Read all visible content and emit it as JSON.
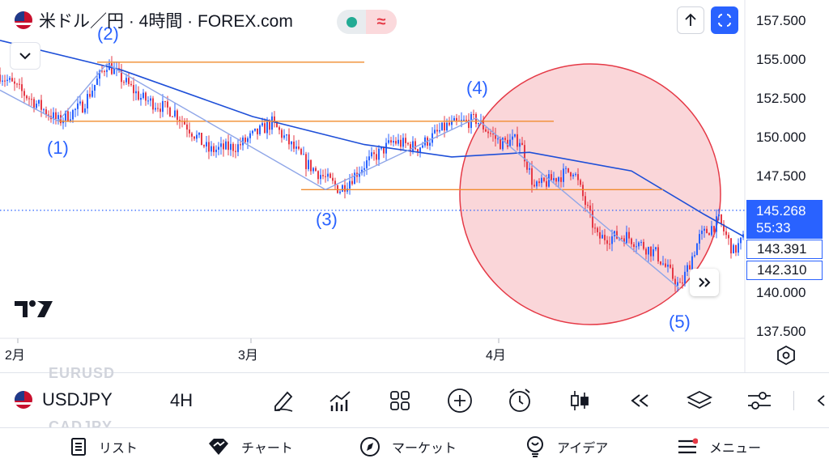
{
  "header": {
    "title": "米ドル／円 · 4時間 · FOREX.com",
    "status_icon": "wave-approx-icon",
    "status_symbol": "≈"
  },
  "price_axis": {
    "ticks": [
      "157.500",
      "155.000",
      "152.500",
      "150.000",
      "147.500",
      "140.000",
      "137.500"
    ],
    "current_price": "145.268",
    "countdown": "55:33",
    "label_2": "143.391",
    "label_3": "142.310"
  },
  "time_axis": {
    "labels": [
      "2月",
      "3月",
      "4月"
    ]
  },
  "annotations": {
    "wave_labels": [
      "(1)",
      "(2)",
      "(3)",
      "(4)",
      "(5)"
    ]
  },
  "colors": {
    "candle_up": "#2962ff",
    "candle_down": "#e53946",
    "moving_average": "#1e4fd8",
    "horizontal_lines": "#f08c2e",
    "wave_lines": "#8fa6e8",
    "circle_fill": "#f5b5b9",
    "circle_stroke": "#e53946",
    "accent_blue": "#2962ff"
  },
  "toolbar": {
    "symbol": "USDJPY",
    "timeframe": "4H",
    "ghost_above": "EURUSD",
    "ghost_below": "CADJPY",
    "tools": [
      "drawing-pen-icon",
      "indicators-icon",
      "layouts-grid-icon",
      "add-icon",
      "alert-clock-icon",
      "candlestick-type-icon",
      "replay-icon",
      "layers-icon",
      "settings-sliders-icon"
    ]
  },
  "nav": {
    "items": [
      {
        "label": "リスト",
        "icon": "list-icon"
      },
      {
        "label": "チャート",
        "icon": "chart-icon"
      },
      {
        "label": "マーケット",
        "icon": "compass-icon"
      },
      {
        "label": "アイデア",
        "icon": "idea-bulb-icon"
      },
      {
        "label": "メニュー",
        "icon": "menu-icon"
      }
    ]
  },
  "chart_data": {
    "type": "candlestick",
    "symbol": "USDJPY",
    "timeframe": "4H",
    "ylim": [
      136.5,
      158.5
    ],
    "x_labels": [
      "2月",
      "3月",
      "4月"
    ],
    "path_points": [
      {
        "t": 0,
        "v": 154.0
      },
      {
        "t": 12,
        "v": 152.5
      },
      {
        "t": 24,
        "v": 151.0
      },
      {
        "t": 34,
        "v": 152.0
      },
      {
        "t": 44,
        "v": 154.7
      },
      {
        "t": 58,
        "v": 152.5
      },
      {
        "t": 72,
        "v": 151.6
      },
      {
        "t": 86,
        "v": 149.1
      },
      {
        "t": 98,
        "v": 149.4
      },
      {
        "t": 112,
        "v": 150.9
      },
      {
        "t": 126,
        "v": 148.3
      },
      {
        "t": 140,
        "v": 146.6
      },
      {
        "t": 150,
        "v": 148.2
      },
      {
        "t": 162,
        "v": 149.7
      },
      {
        "t": 172,
        "v": 149.3
      },
      {
        "t": 184,
        "v": 150.7
      },
      {
        "t": 196,
        "v": 151.1
      },
      {
        "t": 206,
        "v": 149.6
      },
      {
        "t": 214,
        "v": 149.8
      },
      {
        "t": 220,
        "v": 146.7
      },
      {
        "t": 228,
        "v": 147.3
      },
      {
        "t": 236,
        "v": 147.9
      },
      {
        "t": 246,
        "v": 143.5
      },
      {
        "t": 258,
        "v": 143.6
      },
      {
        "t": 270,
        "v": 142.5
      },
      {
        "t": 280,
        "v": 140.3
      },
      {
        "t": 288,
        "v": 143.5
      },
      {
        "t": 296,
        "v": 144.6
      },
      {
        "t": 302,
        "v": 142.6
      },
      {
        "t": 306,
        "v": 143.4
      }
    ],
    "moving_average": [
      {
        "t": 0,
        "v": 156.2
      },
      {
        "t": 50,
        "v": 154.3
      },
      {
        "t": 104,
        "v": 151.3
      },
      {
        "t": 150,
        "v": 149.5
      },
      {
        "t": 186,
        "v": 148.7
      },
      {
        "t": 218,
        "v": 149.0
      },
      {
        "t": 260,
        "v": 147.8
      },
      {
        "t": 290,
        "v": 145.0
      },
      {
        "t": 306,
        "v": 143.6
      }
    ],
    "horizontal_levels": [
      {
        "price": 154.8,
        "t_start": 40,
        "t_end": 150
      },
      {
        "price": 151.0,
        "t_start": 24,
        "t_end": 228
      },
      {
        "price": 146.6,
        "t_start": 124,
        "t_end": 273
      }
    ],
    "wave_lines": [
      {
        "from": {
          "t": 0,
          "v": 153.0
        },
        "to": {
          "t": 24,
          "v": 151.0
        }
      },
      {
        "from": {
          "t": 24,
          "v": 151.0
        },
        "to": {
          "t": 44,
          "v": 154.7
        }
      },
      {
        "from": {
          "t": 44,
          "v": 154.7
        },
        "to": {
          "t": 134,
          "v": 146.6
        }
      },
      {
        "from": {
          "t": 134,
          "v": 146.6
        },
        "to": {
          "t": 196,
          "v": 151.2
        }
      },
      {
        "from": {
          "t": 196,
          "v": 151.2
        },
        "to": {
          "t": 280,
          "v": 140.2
        }
      }
    ],
    "wave_points": [
      {
        "label": "(1)",
        "t": 24,
        "v": 151.0
      },
      {
        "label": "(2)",
        "t": 44,
        "v": 154.7
      },
      {
        "label": "(3)",
        "t": 134,
        "v": 146.6
      },
      {
        "label": "(4)",
        "t": 196,
        "v": 151.2
      },
      {
        "label": "(5)",
        "t": 280,
        "v": 140.2
      }
    ],
    "highlight_circle": {
      "center": {
        "t": 243,
        "v": 146.3
      }
    },
    "current_price": 145.268
  }
}
